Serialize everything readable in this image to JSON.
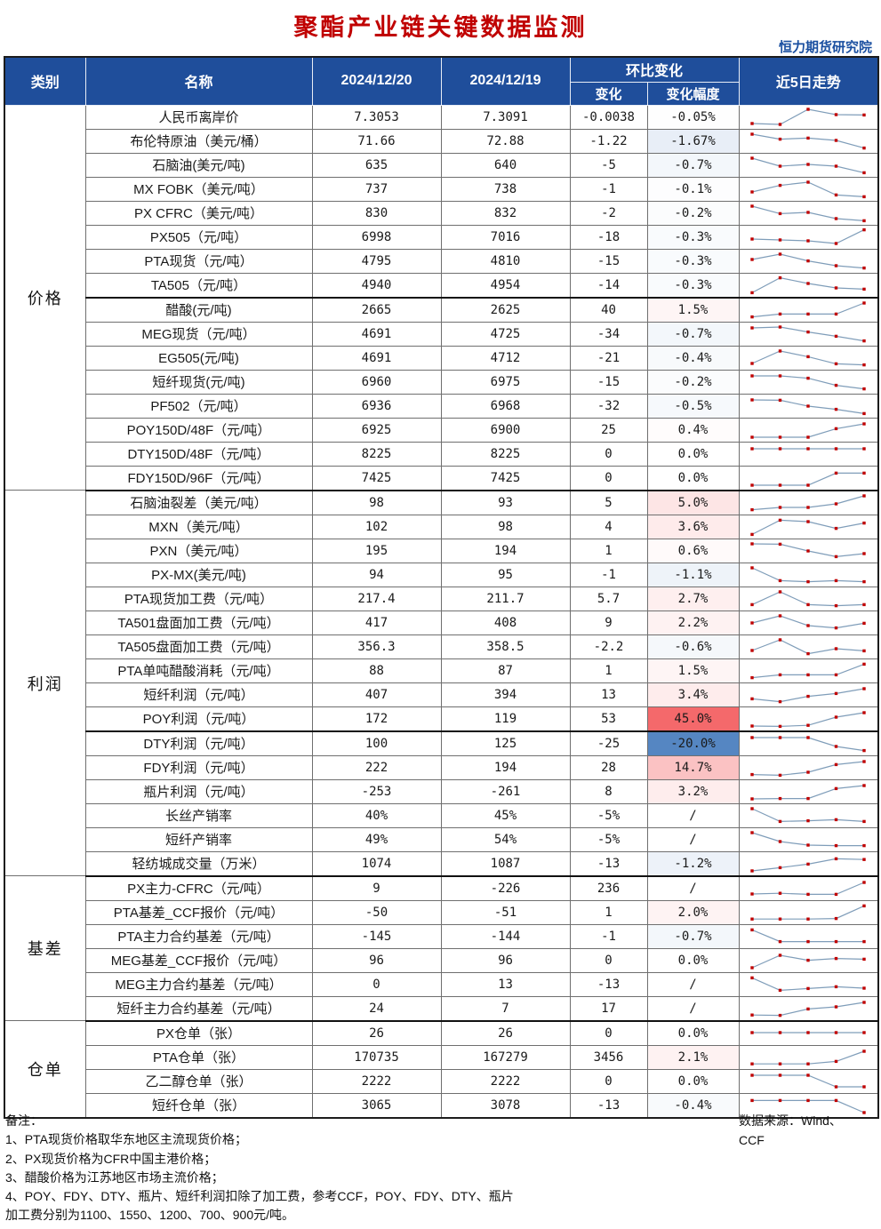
{
  "title": "聚酯产业链关键数据监测",
  "org": "恒力期货研究院",
  "header": {
    "category": "类别",
    "name": "名称",
    "date1": "2024/12/20",
    "date2": "2024/12/19",
    "chain_change": "环比变化",
    "change": "变化",
    "change_pct": "变化幅度",
    "trend": "近5日走势"
  },
  "colors": {
    "header_bg": "#1f4e9b",
    "title_red": "#c00000",
    "pos_max": "#f4696b",
    "neg_max": "#5586c2",
    "spark_line": "#7f9db9",
    "spark_marker": "#c00000"
  },
  "format": {
    "pos_scale_max": 45.0,
    "neg_scale_max": 20.0
  },
  "sections": [
    {
      "label": "价格",
      "rows": [
        {
          "name": "人民币离岸价",
          "v1": "7.3053",
          "v2": "7.3091",
          "chg": "-0.0038",
          "pct": "-0.05%",
          "pct_num": -0.05,
          "trend": [
            0.15,
            0.1,
            0.95,
            0.65,
            0.63
          ]
        },
        {
          "name": "布伦特原油（美元/桶）",
          "v1": "71.66",
          "v2": "72.88",
          "chg": "-1.22",
          "pct": "-1.67%",
          "pct_num": -1.67,
          "trend": [
            0.9,
            0.62,
            0.68,
            0.55,
            0.12
          ]
        },
        {
          "name": "石脑油(美元/吨)",
          "v1": "635",
          "v2": "640",
          "chg": "-5",
          "pct": "-0.7%",
          "pct_num": -0.7,
          "trend": [
            0.9,
            0.45,
            0.55,
            0.45,
            0.08
          ]
        },
        {
          "name": "MX FOBK（美元/吨）",
          "v1": "737",
          "v2": "738",
          "chg": "-1",
          "pct": "-0.1%",
          "pct_num": -0.1,
          "trend": [
            0.35,
            0.72,
            0.9,
            0.18,
            0.08
          ]
        },
        {
          "name": "PX CFRC（美元/吨）",
          "v1": "830",
          "v2": "832",
          "chg": "-2",
          "pct": "-0.2%",
          "pct_num": -0.2,
          "trend": [
            0.9,
            0.48,
            0.55,
            0.2,
            0.08
          ]
        },
        {
          "name": "PX505（元/吨）",
          "v1": "6998",
          "v2": "7016",
          "chg": "-18",
          "pct": "-0.3%",
          "pct_num": -0.3,
          "trend": [
            0.4,
            0.35,
            0.3,
            0.15,
            0.92
          ]
        },
        {
          "name": "PTA现货（元/吨）",
          "v1": "4795",
          "v2": "4810",
          "chg": "-15",
          "pct": "-0.3%",
          "pct_num": -0.3,
          "trend": [
            0.6,
            0.9,
            0.52,
            0.25,
            0.12
          ]
        },
        {
          "name": "TA505（元/吨）",
          "v1": "4940",
          "v2": "4954",
          "chg": "-14",
          "pct": "-0.3%",
          "pct_num": -0.3,
          "trend": [
            0.08,
            0.92,
            0.6,
            0.35,
            0.28
          ],
          "thick": true
        },
        {
          "name": "醋酸(元/吨)",
          "v1": "2665",
          "v2": "2625",
          "chg": "40",
          "pct": "1.5%",
          "pct_num": 1.5,
          "trend": [
            0.12,
            0.28,
            0.28,
            0.28,
            0.9
          ]
        },
        {
          "name": "MEG现货（元/吨）",
          "v1": "4691",
          "v2": "4725",
          "chg": "-34",
          "pct": "-0.7%",
          "pct_num": -0.7,
          "trend": [
            0.85,
            0.9,
            0.62,
            0.38,
            0.12
          ]
        },
        {
          "name": "EG505(元/吨)",
          "v1": "4691",
          "v2": "4712",
          "chg": "-21",
          "pct": "-0.4%",
          "pct_num": -0.4,
          "trend": [
            0.2,
            0.9,
            0.58,
            0.18,
            0.12
          ]
        },
        {
          "name": "短纤现货(元/吨)",
          "v1": "6960",
          "v2": "6975",
          "chg": "-15",
          "pct": "-0.2%",
          "pct_num": -0.2,
          "trend": [
            0.85,
            0.85,
            0.72,
            0.32,
            0.12
          ]
        },
        {
          "name": "PF502（元/吨）",
          "v1": "6936",
          "v2": "6968",
          "chg": "-32",
          "pct": "-0.5%",
          "pct_num": -0.5,
          "trend": [
            0.85,
            0.83,
            0.5,
            0.32,
            0.08
          ]
        },
        {
          "name": "POY150D/48F（元/吨）",
          "v1": "6925",
          "v2": "6900",
          "chg": "25",
          "pct": "0.4%",
          "pct_num": 0.4,
          "trend": [
            0.1,
            0.1,
            0.1,
            0.58,
            0.85
          ]
        },
        {
          "name": "DTY150D/48F（元/吨）",
          "v1": "8225",
          "v2": "8225",
          "chg": "0",
          "pct": "0.0%",
          "pct_num": 0,
          "trend": [
            0.8,
            0.8,
            0.8,
            0.8,
            0.8
          ]
        },
        {
          "name": "FDY150D/96F（元/吨）",
          "v1": "7425",
          "v2": "7425",
          "chg": "0",
          "pct": "0.0%",
          "pct_num": 0,
          "trend": [
            0.1,
            0.1,
            0.1,
            0.78,
            0.78
          ],
          "thick": true
        }
      ]
    },
    {
      "label": "利润",
      "rows": [
        {
          "name": "石脑油裂差（美元/吨）",
          "v1": "98",
          "v2": "93",
          "chg": "5",
          "pct": "5.0%",
          "pct_num": 5.0,
          "trend": [
            0.12,
            0.25,
            0.25,
            0.45,
            0.9
          ]
        },
        {
          "name": "MXN（美元/吨）",
          "v1": "102",
          "v2": "98",
          "chg": "4",
          "pct": "3.6%",
          "pct_num": 3.6,
          "trend": [
            0.08,
            0.88,
            0.8,
            0.42,
            0.72
          ]
        },
        {
          "name": "PXN（美元/吨）",
          "v1": "195",
          "v2": "194",
          "chg": "1",
          "pct": "0.6%",
          "pct_num": 0.6,
          "trend": [
            0.9,
            0.88,
            0.5,
            0.18,
            0.35
          ]
        },
        {
          "name": "PX-MX(美元/吨)",
          "v1": "94",
          "v2": "95",
          "chg": "-1",
          "pct": "-1.1%",
          "pct_num": -1.1,
          "trend": [
            0.9,
            0.18,
            0.12,
            0.18,
            0.12
          ]
        },
        {
          "name": "PTA现货加工费（元/吨）",
          "v1": "217.4",
          "v2": "211.7",
          "chg": "5.7",
          "pct": "2.7%",
          "pct_num": 2.7,
          "trend": [
            0.18,
            0.9,
            0.18,
            0.12,
            0.18
          ]
        },
        {
          "name": "TA501盘面加工费（元/吨）",
          "v1": "417",
          "v2": "408",
          "chg": "9",
          "pct": "2.2%",
          "pct_num": 2.2,
          "trend": [
            0.5,
            0.9,
            0.35,
            0.22,
            0.48
          ]
        },
        {
          "name": "TA505盘面加工费（元/吨）",
          "v1": "356.3",
          "v2": "358.5",
          "chg": "-2.2",
          "pct": "-0.6%",
          "pct_num": -0.6,
          "trend": [
            0.3,
            0.9,
            0.12,
            0.4,
            0.28
          ]
        },
        {
          "name": "PTA单吨醋酸消耗（元/吨）",
          "v1": "88",
          "v2": "87",
          "chg": "1",
          "pct": "1.5%",
          "pct_num": 1.5,
          "trend": [
            0.12,
            0.28,
            0.28,
            0.28,
            0.88
          ]
        },
        {
          "name": "短纤利润（元/吨）",
          "v1": "407",
          "v2": "394",
          "chg": "13",
          "pct": "3.4%",
          "pct_num": 3.4,
          "trend": [
            0.28,
            0.12,
            0.42,
            0.58,
            0.85
          ]
        },
        {
          "name": "POY利润（元/吨）",
          "v1": "172",
          "v2": "119",
          "chg": "53",
          "pct": "45.0%",
          "pct_num": 45.0,
          "trend": [
            0.1,
            0.08,
            0.14,
            0.6,
            0.85
          ],
          "thick": true
        },
        {
          "name": "DTY利润（元/吨）",
          "v1": "100",
          "v2": "125",
          "chg": "-25",
          "pct": "-20.0%",
          "pct_num": -20.0,
          "trend": [
            0.85,
            0.85,
            0.85,
            0.35,
            0.12
          ]
        },
        {
          "name": "FDY利润（元/吨）",
          "v1": "222",
          "v2": "194",
          "chg": "28",
          "pct": "14.7%",
          "pct_num": 14.7,
          "trend": [
            0.12,
            0.08,
            0.25,
            0.68,
            0.85
          ]
        },
        {
          "name": "瓶片利润（元/吨）",
          "v1": "-253",
          "v2": "-261",
          "chg": "8",
          "pct": "3.2%",
          "pct_num": 3.2,
          "trend": [
            0.1,
            0.12,
            0.12,
            0.68,
            0.85
          ]
        },
        {
          "name": "长丝产销率",
          "v1": "40%",
          "v2": "45%",
          "chg": "-5%",
          "pct": "/",
          "pct_num": null,
          "trend": [
            0.9,
            0.18,
            0.22,
            0.28,
            0.18
          ]
        },
        {
          "name": "短纤产销率",
          "v1": "49%",
          "v2": "54%",
          "chg": "-5%",
          "pct": "/",
          "pct_num": null,
          "trend": [
            0.9,
            0.4,
            0.2,
            0.17,
            0.17
          ]
        },
        {
          "name": "轻纺城成交量（万米）",
          "v1": "1074",
          "v2": "1087",
          "chg": "-13",
          "pct": "-1.2%",
          "pct_num": -1.2,
          "trend": [
            0.1,
            0.28,
            0.48,
            0.78,
            0.74
          ],
          "thick": true
        }
      ]
    },
    {
      "label": "基差",
      "rows": [
        {
          "name": "PX主力-CFRC（元/吨）",
          "v1": "9",
          "v2": "-226",
          "chg": "236",
          "pct": "/",
          "pct_num": null,
          "trend": [
            0.2,
            0.24,
            0.18,
            0.18,
            0.85
          ]
        },
        {
          "name": "PTA基差_CCF报价（元/吨）",
          "v1": "-50",
          "v2": "-51",
          "chg": "1",
          "pct": "2.0%",
          "pct_num": 2.0,
          "trend": [
            0.14,
            0.14,
            0.14,
            0.17,
            0.88
          ]
        },
        {
          "name": "PTA主力合约基差（元/吨）",
          "v1": "-145",
          "v2": "-144",
          "chg": "-1",
          "pct": "-0.7%",
          "pct_num": -0.7,
          "trend": [
            0.88,
            0.22,
            0.22,
            0.22,
            0.22
          ]
        },
        {
          "name": "MEG基差_CCF报价（元/吨）",
          "v1": "96",
          "v2": "96",
          "chg": "0",
          "pct": "0.0%",
          "pct_num": 0,
          "trend": [
            0.1,
            0.8,
            0.52,
            0.62,
            0.58
          ]
        },
        {
          "name": "MEG主力合约基差（元/吨）",
          "v1": "0",
          "v2": "13",
          "chg": "-13",
          "pct": "/",
          "pct_num": null,
          "trend": [
            0.88,
            0.18,
            0.28,
            0.38,
            0.3
          ]
        },
        {
          "name": "短纤主力合约基差（元/吨）",
          "v1": "24",
          "v2": "7",
          "chg": "17",
          "pct": "/",
          "pct_num": null,
          "trend": [
            0.14,
            0.12,
            0.48,
            0.6,
            0.85
          ],
          "thick": true
        }
      ]
    },
    {
      "label": "仓单",
      "rows": [
        {
          "name": "PX仓单（张）",
          "v1": "26",
          "v2": "26",
          "chg": "0",
          "pct": "0.0%",
          "pct_num": 0,
          "trend": [
            0.55,
            0.55,
            0.55,
            0.55,
            0.55
          ]
        },
        {
          "name": "PTA仓单（张）",
          "v1": "170735",
          "v2": "167279",
          "chg": "3456",
          "pct": "2.1%",
          "pct_num": 2.1,
          "trend": [
            0.14,
            0.14,
            0.14,
            0.28,
            0.85
          ]
        },
        {
          "name": "乙二醇仓单（张）",
          "v1": "2222",
          "v2": "2222",
          "chg": "0",
          "pct": "0.0%",
          "pct_num": 0,
          "trend": [
            0.85,
            0.85,
            0.85,
            0.2,
            0.2
          ]
        },
        {
          "name": "短纤仓单（张）",
          "v1": "3065",
          "v2": "3078",
          "chg": "-13",
          "pct": "-0.4%",
          "pct_num": -0.4,
          "trend": [
            0.78,
            0.78,
            0.78,
            0.78,
            0.1
          ]
        }
      ]
    }
  ],
  "notes": {
    "title": "备注：",
    "lines": [
      "1、PTA现货价格取华东地区主流现货价格；",
      "2、PX现货价格为CFR中国主港价格；",
      "3、醋酸价格为江苏地区市场主流价格；",
      "4、POY、FDY、DTY、瓶片、短纤利润扣除了加工费，参考CCF，POY、FDY、DTY、瓶片",
      "加工费分别为1100、1550、1200、700、900元/吨。"
    ]
  },
  "source": {
    "line1": "数据来源：Wind、",
    "line2": "CCF"
  }
}
